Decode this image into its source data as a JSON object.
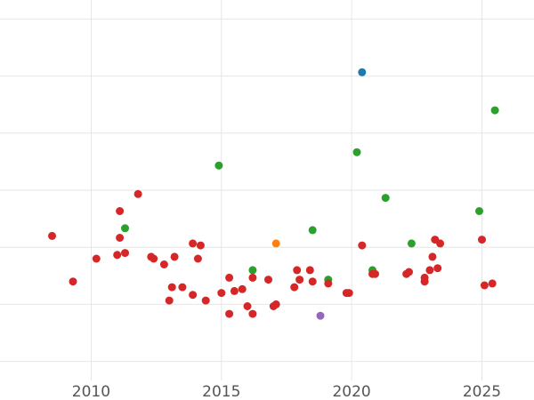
{
  "chart_data": {
    "type": "scatter",
    "title": "",
    "xlabel": "",
    "ylabel": "",
    "xlim": [
      2006.5,
      2027
    ],
    "ylim": [
      0,
      100
    ],
    "grid": true,
    "xticks": [
      2010,
      2015,
      2020,
      2025
    ],
    "xtick_labels": [
      "2010",
      "2015",
      "2020",
      "2025"
    ],
    "yticks": [
      5,
      20,
      35,
      50,
      65,
      80,
      95
    ],
    "series": [
      {
        "color": "#1f77b4",
        "points": [
          [
            2020.4,
            81
          ]
        ]
      },
      {
        "color": "#2ca02c",
        "points": [
          [
            2025.5,
            71
          ],
          [
            2020.2,
            60
          ],
          [
            2014.9,
            56.5
          ],
          [
            2021.3,
            48
          ],
          [
            2024.9,
            44.5
          ],
          [
            2011.3,
            40
          ],
          [
            2018.5,
            39.5
          ],
          [
            2022.3,
            36
          ],
          [
            2016.2,
            29
          ],
          [
            2020.8,
            29
          ],
          [
            2019.1,
            26.5
          ]
        ]
      },
      {
        "color": "#ff7f0e",
        "points": [
          [
            2017.1,
            36
          ]
        ]
      },
      {
        "color": "#9467bd",
        "points": [
          [
            2018.8,
            17
          ]
        ]
      },
      {
        "color": "#d62728",
        "points": [
          [
            2008.5,
            38
          ],
          [
            2009.3,
            26
          ],
          [
            2010.2,
            32
          ],
          [
            2011.0,
            33
          ],
          [
            2011.1,
            44.5
          ],
          [
            2011.1,
            37.5
          ],
          [
            2011.3,
            33.5
          ],
          [
            2011.8,
            49
          ],
          [
            2012.3,
            32.5
          ],
          [
            2012.4,
            32
          ],
          [
            2012.8,
            30.5
          ],
          [
            2013.0,
            21
          ],
          [
            2013.1,
            24.5
          ],
          [
            2013.2,
            32.5
          ],
          [
            2013.5,
            24.5
          ],
          [
            2013.9,
            22.5
          ],
          [
            2013.9,
            36
          ],
          [
            2014.1,
            32
          ],
          [
            2014.2,
            35.5
          ],
          [
            2014.4,
            21
          ],
          [
            2015.0,
            23
          ],
          [
            2015.3,
            27
          ],
          [
            2015.3,
            17.5
          ],
          [
            2015.5,
            23.5
          ],
          [
            2015.8,
            24
          ],
          [
            2016.0,
            19.5
          ],
          [
            2016.2,
            17.5
          ],
          [
            2016.2,
            27
          ],
          [
            2016.8,
            26.5
          ],
          [
            2017.0,
            19.5
          ],
          [
            2017.1,
            20
          ],
          [
            2017.8,
            24.5
          ],
          [
            2017.9,
            29
          ],
          [
            2018.0,
            26.5
          ],
          [
            2018.4,
            29
          ],
          [
            2018.5,
            26
          ],
          [
            2019.1,
            25.5
          ],
          [
            2019.8,
            23
          ],
          [
            2019.9,
            23
          ],
          [
            2020.4,
            35.5
          ],
          [
            2020.8,
            28
          ],
          [
            2020.9,
            28
          ],
          [
            2022.1,
            28
          ],
          [
            2022.2,
            28.5
          ],
          [
            2022.8,
            26
          ],
          [
            2022.8,
            27
          ],
          [
            2023.0,
            29
          ],
          [
            2023.1,
            32.5
          ],
          [
            2023.2,
            37
          ],
          [
            2023.3,
            29.5
          ],
          [
            2023.4,
            36
          ],
          [
            2025.0,
            37
          ],
          [
            2025.1,
            25
          ],
          [
            2025.4,
            25.5
          ]
        ]
      }
    ]
  }
}
